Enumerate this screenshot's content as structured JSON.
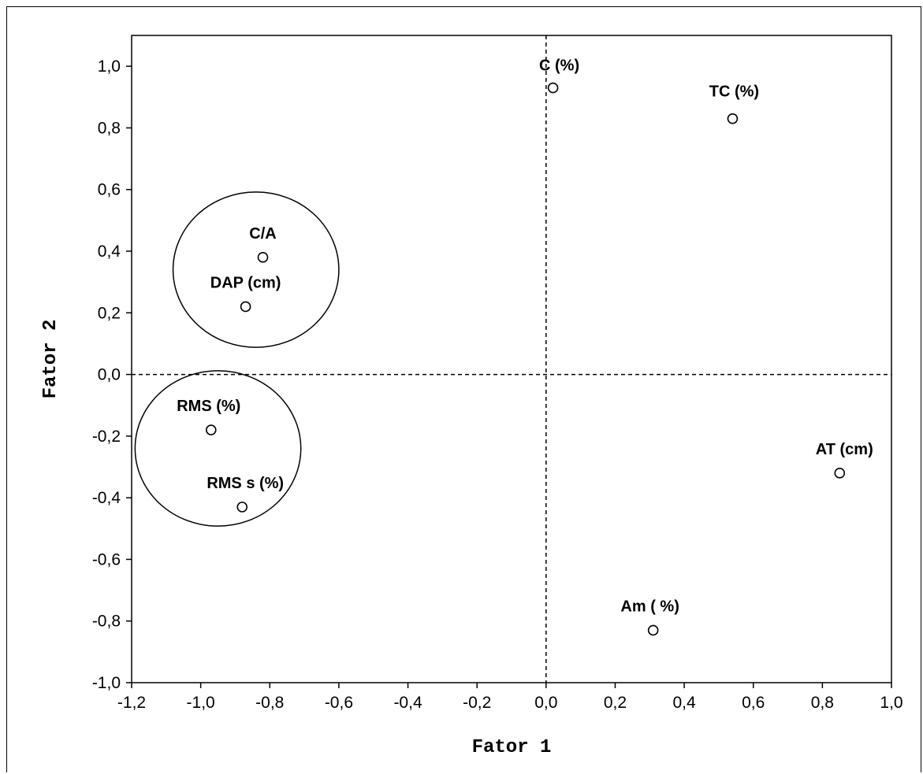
{
  "chart_data": {
    "type": "scatter",
    "title": "",
    "xlabel": "Fator 1",
    "ylabel": "Fator 2",
    "xlim": [
      -1.2,
      1.0
    ],
    "ylim": [
      -1.0,
      1.1
    ],
    "xticks": [
      -1.2,
      -1.0,
      -0.8,
      -0.6,
      -0.4,
      -0.2,
      0.0,
      0.2,
      0.4,
      0.6,
      0.8,
      1.0
    ],
    "yticks": [
      -1.0,
      -0.8,
      -0.6,
      -0.4,
      -0.2,
      0.0,
      0.2,
      0.4,
      0.6,
      0.8,
      1.0
    ],
    "xtick_labels": [
      "-1,2",
      "-1,0",
      "-0,8",
      "-0,6",
      "-0,4",
      "-0,2",
      "0,0",
      "0,2",
      "0,4",
      "0,6",
      "0,8",
      "1,0"
    ],
    "ytick_labels": [
      "-1,0",
      "-0,8",
      "-0,6",
      "-0,4",
      "-0,2",
      "0,0",
      "0,2",
      "0,4",
      "0,6",
      "0,8",
      "1,0"
    ],
    "grid": false,
    "reference_lines": {
      "x": 0.0,
      "y": 0.0,
      "style": "dashed"
    },
    "points": [
      {
        "label": "C (%)",
        "x": 0.02,
        "y": 0.93
      },
      {
        "label": "TC (%)",
        "x": 0.54,
        "y": 0.83
      },
      {
        "label": "C/A",
        "x": -0.82,
        "y": 0.38
      },
      {
        "label": "DAP  (cm)",
        "x": -0.87,
        "y": 0.22
      },
      {
        "label": "RMS (%)",
        "x": -0.97,
        "y": -0.18
      },
      {
        "label": "RMS s (%)",
        "x": -0.88,
        "y": -0.43
      },
      {
        "label": "AT (cm)",
        "x": 0.85,
        "y": -0.32
      },
      {
        "label": "Am ( %)",
        "x": 0.31,
        "y": -0.83
      }
    ],
    "groups": [
      {
        "members": [
          "C/A",
          "DAP  (cm)"
        ],
        "cx": -0.84,
        "cy": 0.34,
        "r": 0.24
      },
      {
        "members": [
          "RMS (%)",
          "RMS s (%)"
        ],
        "cx": -0.95,
        "cy": -0.24,
        "r": 0.24
      }
    ]
  }
}
